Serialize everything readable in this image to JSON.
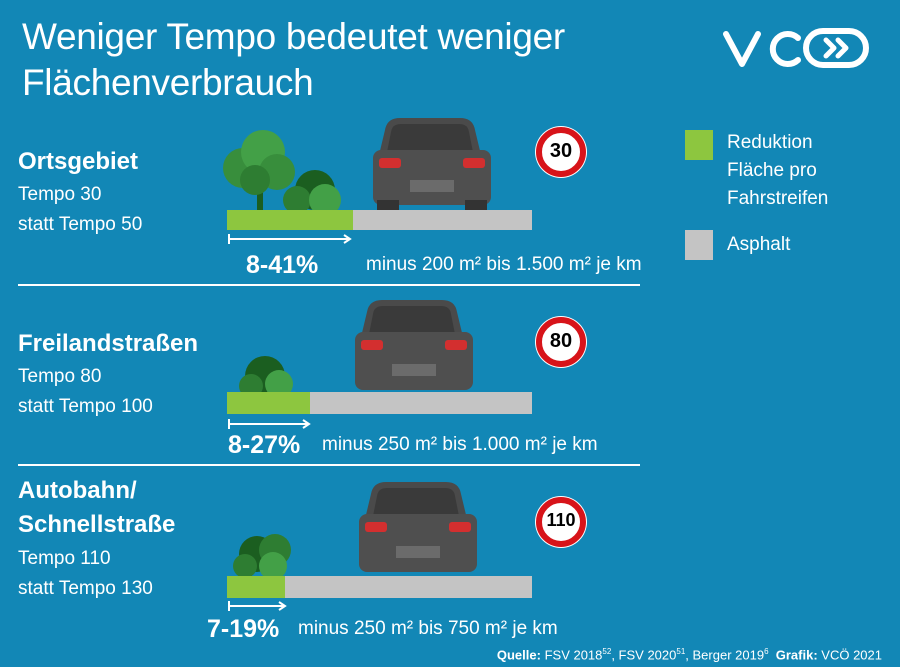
{
  "title": {
    "line1": "Weniger Tempo bedeutet weniger",
    "line2": "Flächenverbrauch"
  },
  "logo": {
    "text": "VCÖ"
  },
  "colors": {
    "background": "#1287b6",
    "reduction": "#8dc63f",
    "asphalt": "#c4c4c4",
    "sign_ring": "#d7141a"
  },
  "legend": {
    "reduction": [
      "Reduktion",
      "Fläche pro",
      "Fahrstreifen"
    ],
    "asphalt": "Asphalt"
  },
  "sections": [
    {
      "title": [
        "Ortsgebiet"
      ],
      "line1": "Tempo 30",
      "line2": "statt Tempo 50",
      "sign": "30",
      "pct": "8-41%",
      "desc": "minus 200 m² bis 1.500 m² je km",
      "reduction_share": 0.41
    },
    {
      "title": [
        "Freilandstraßen"
      ],
      "line1": "Tempo 80",
      "line2": "statt Tempo 100",
      "sign": "80",
      "pct": "8-27%",
      "desc": "minus 250 m² bis 1.000 m² je km",
      "reduction_share": 0.27
    },
    {
      "title": [
        "Autobahn/",
        "Schnellstraße"
      ],
      "line1": "Tempo 110",
      "line2": "statt Tempo 130",
      "sign": "110",
      "pct": "7-19%",
      "desc": "minus 250 m² bis 750 m² je km",
      "reduction_share": 0.19
    }
  ],
  "source": {
    "label": "Quelle:",
    "ref1": "FSV 2018",
    "sup1": "52",
    "sep1": ", ",
    "ref2": "FSV 2020",
    "sup2": "51",
    "sep2": ", ",
    "ref3": "Berger 2019",
    "sup3": "6",
    "grafik_label": "Grafik:",
    "grafik": "VCÖ 2021"
  }
}
